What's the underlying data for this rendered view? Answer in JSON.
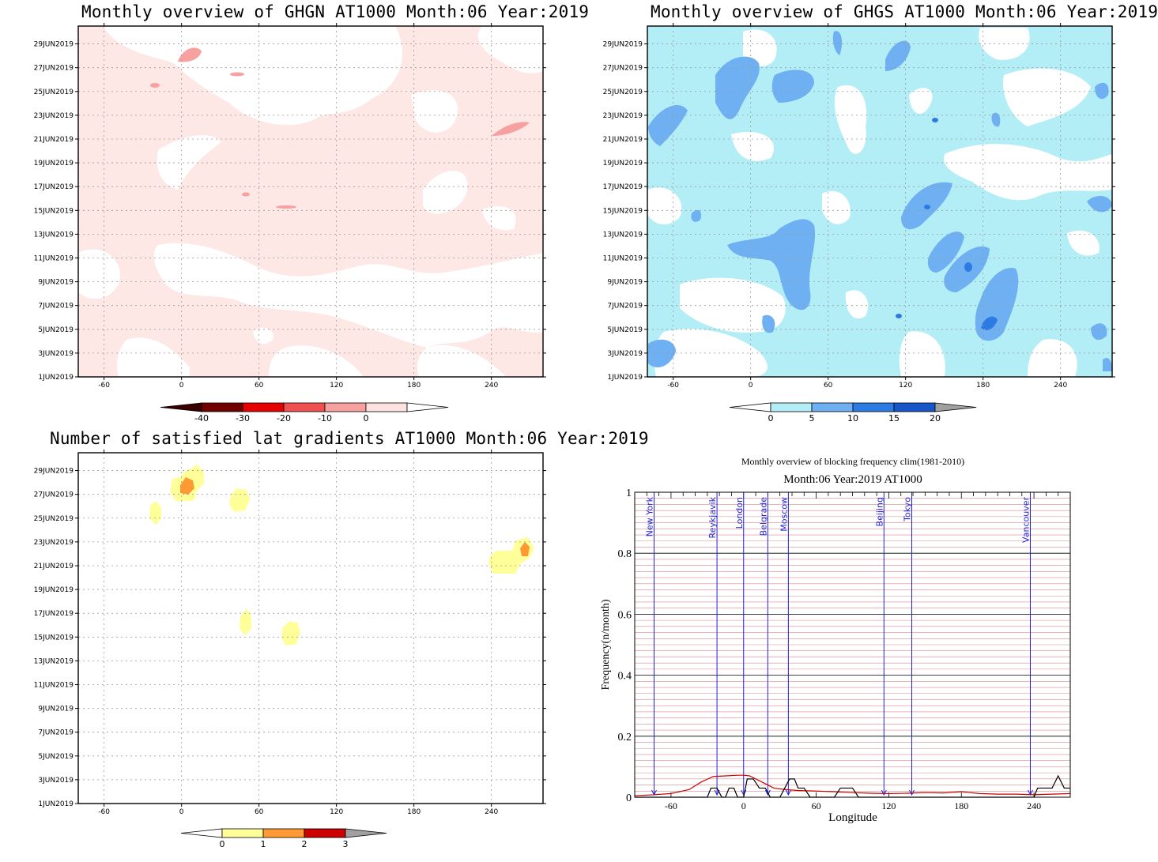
{
  "maps": [
    {
      "id": "ghgn",
      "title": "Monthly overview of GHGN AT1000 Month:06 Year:2019",
      "x_ticks": [
        -60,
        0,
        60,
        120,
        180,
        240
      ],
      "y_ticks": [
        "1JUN2019",
        "3JUN2019",
        "5JUN2019",
        "7JUN2019",
        "9JUN2019",
        "11JUN2019",
        "13JUN2019",
        "15JUN2019",
        "17JUN2019",
        "19JUN2019",
        "21JUN2019",
        "23JUN2019",
        "25JUN2019",
        "27JUN2019",
        "29JUN2019"
      ],
      "colorbar": {
        "labels": [
          "-40",
          "-30",
          "-20",
          "-10",
          "0"
        ],
        "colors": [
          "#6e0000",
          "#e60000",
          "#f05050",
          "#f7a0a0",
          "#fde2e2"
        ],
        "left_arrow": "#3a0000",
        "right_arrow": "#ffffff"
      },
      "background": "#fde8e6"
    },
    {
      "id": "ghgs",
      "title": "Monthly overview of GHGS AT1000 Month:06 Year:2019",
      "x_ticks": [
        -60,
        0,
        60,
        120,
        180,
        240
      ],
      "y_ticks": [
        "1JUN2019",
        "3JUN2019",
        "5JUN2019",
        "7JUN2019",
        "9JUN2019",
        "11JUN2019",
        "13JUN2019",
        "15JUN2019",
        "17JUN2019",
        "19JUN2019",
        "21JUN2019",
        "23JUN2019",
        "25JUN2019",
        "27JUN2019",
        "29JUN2019"
      ],
      "colorbar": {
        "labels": [
          "0",
          "5",
          "10",
          "15",
          "20"
        ],
        "colors": [
          "#b3eef7",
          "#6fb0f2",
          "#2c7be3",
          "#1656c8"
        ],
        "left_arrow": "#ffffff",
        "right_arrow": "#a0a0a0"
      },
      "background": "#b3eef7"
    },
    {
      "id": "lat",
      "title": "Number of satisfied lat gradients AT1000 Month:06 Year:2019",
      "x_ticks": [
        -60,
        0,
        60,
        120,
        180,
        240
      ],
      "y_ticks": [
        "1JUN2019",
        "3JUN2019",
        "5JUN2019",
        "7JUN2019",
        "9JUN2019",
        "11JUN2019",
        "13JUN2019",
        "15JUN2019",
        "17JUN2019",
        "19JUN2019",
        "21JUN2019",
        "23JUN2019",
        "25JUN2019",
        "27JUN2019",
        "29JUN2019"
      ],
      "colorbar": {
        "labels": [
          "0",
          "1",
          "2",
          "3"
        ],
        "colors": [
          "#ffff99",
          "#ff9933",
          "#cc0000"
        ],
        "left_arrow": "#ffffff",
        "right_arrow": "#a0a0a0"
      },
      "background": "#ffffff"
    }
  ],
  "chart_data": {
    "type": "line",
    "title": "Monthly overview of blocking frequency clim(1981-2010)",
    "subtitle": "Month:06 Year:2019  AT1000",
    "xlabel": "Longitude",
    "ylabel": "Frequency(n/month)",
    "xlim": [
      -90,
      270
    ],
    "ylim": [
      0,
      1
    ],
    "x_ticks": [
      -60,
      0,
      60,
      120,
      180,
      240
    ],
    "y_ticks": [
      "0",
      "0.2",
      "0.4",
      "0.6",
      "0.8",
      "1"
    ],
    "cities": [
      {
        "name": "New York",
        "lon": -74
      },
      {
        "name": "Reykjavik",
        "lon": -22
      },
      {
        "name": "London",
        "lon": 0
      },
      {
        "name": "Belgrade",
        "lon": 20
      },
      {
        "name": "Moscow",
        "lon": 37
      },
      {
        "name": "Beijing",
        "lon": 116
      },
      {
        "name": "Tokyo",
        "lon": 139
      },
      {
        "name": "Vancouver",
        "lon": 237
      }
    ],
    "series": [
      {
        "color": "#cc0000",
        "x": [
          -90,
          -75,
          -60,
          -45,
          -35,
          -25,
          -15,
          -5,
          0,
          5,
          15,
          25,
          35,
          45,
          60,
          75,
          90,
          105,
          120,
          135,
          150,
          165,
          180,
          195,
          210,
          225,
          240,
          255,
          270
        ],
        "y": [
          0.005,
          0.008,
          0.012,
          0.025,
          0.05,
          0.068,
          0.07,
          0.072,
          0.072,
          0.07,
          0.05,
          0.03,
          0.025,
          0.022,
          0.02,
          0.018,
          0.015,
          0.013,
          0.012,
          0.013,
          0.015,
          0.014,
          0.018,
          0.012,
          0.01,
          0.01,
          0.008,
          0.01,
          0.012
        ]
      },
      {
        "color": "#000000",
        "x": [
          -90,
          -30,
          -27,
          -22,
          -18,
          -15,
          -12,
          -8,
          -5,
          0,
          3,
          8,
          13,
          18,
          22,
          25,
          30,
          34,
          38,
          42,
          45,
          50,
          55,
          60,
          65,
          70,
          75,
          80,
          85,
          90,
          95,
          100,
          120,
          240,
          243,
          255,
          260,
          265,
          270
        ],
        "y": [
          0,
          0,
          0.03,
          0.03,
          0,
          0,
          0.03,
          0.03,
          0,
          0,
          0.06,
          0.06,
          0.03,
          0.03,
          0,
          0,
          0,
          0.03,
          0.06,
          0.06,
          0.03,
          0.03,
          0,
          0,
          0,
          0,
          0,
          0.03,
          0.03,
          0.03,
          0,
          0,
          0,
          0,
          0.03,
          0.03,
          0.07,
          0.03,
          0.03
        ]
      }
    ]
  }
}
